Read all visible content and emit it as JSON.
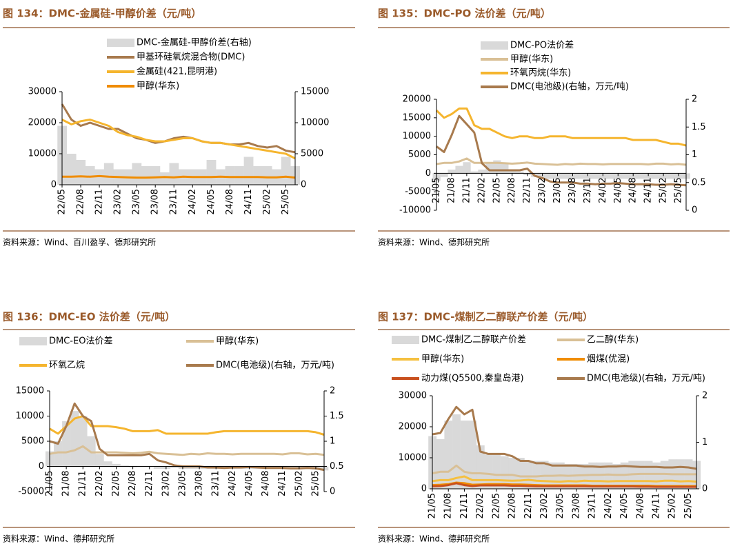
{
  "chart_data": [
    {
      "type": "line",
      "title": "图 134：DMC-金属硅-甲醇价差（元/吨）",
      "source": "资料来源：Wind、百川盈孚、德邦研究所",
      "categories": [
        "22/05",
        null,
        "22/08",
        null,
        "22/11",
        null,
        "23/02",
        null,
        "23/05",
        null,
        "23/08",
        null,
        "23/11",
        null,
        "24/02",
        null,
        "24/05",
        null,
        "24/08",
        null,
        "24/11",
        null,
        "25/02",
        null,
        "25/05",
        null
      ],
      "ylim": [
        0,
        30000
      ],
      "yticks": [
        0,
        10000,
        20000,
        30000
      ],
      "y2lim": [
        0,
        15000
      ],
      "y2ticks": [
        0,
        5000,
        10000,
        15000
      ],
      "series": [
        {
          "name": "DMC-金属硅-甲醇价差(右轴)",
          "type": "area",
          "axis": "y2",
          "color": "#d9d9d9",
          "values": [
            9500,
            5000,
            4000,
            3000,
            2500,
            3500,
            2500,
            2500,
            3500,
            3000,
            3000,
            2000,
            3500,
            2500,
            2500,
            2500,
            4000,
            2500,
            3000,
            3000,
            4500,
            3000,
            3000,
            2500,
            4500,
            3000
          ]
        },
        {
          "name": "甲基环硅氧烷混合物(DMC)",
          "type": "line",
          "color": "#a87a4d",
          "values": [
            26000,
            21000,
            19000,
            20000,
            19000,
            18000,
            18000,
            16500,
            15000,
            14500,
            13500,
            14000,
            15000,
            15500,
            15000,
            14000,
            13500,
            13500,
            13000,
            13000,
            13500,
            12500,
            12000,
            12500,
            11000,
            10500
          ]
        },
        {
          "name": "金属硅(421,昆明港)",
          "type": "line",
          "color": "#f5b52e",
          "values": [
            21000,
            19500,
            20500,
            21000,
            20000,
            19000,
            17000,
            16000,
            15500,
            14500,
            14000,
            14000,
            14500,
            15000,
            15000,
            14000,
            13500,
            13500,
            13000,
            12500,
            12000,
            11500,
            11000,
            10500,
            10000,
            8500
          ]
        },
        {
          "name": "甲醇(华东)",
          "type": "line",
          "color": "#f08c00",
          "values": [
            2600,
            2600,
            2700,
            2600,
            2800,
            2600,
            2500,
            2400,
            2300,
            2300,
            2400,
            2500,
            2400,
            2600,
            2500,
            2500,
            2500,
            2600,
            2500,
            2500,
            2500,
            2500,
            2400,
            2400,
            2600,
            2300
          ]
        }
      ]
    },
    {
      "type": "line",
      "title": "图 135：DMC-PO 法价差（元/吨）",
      "source": "资料来源：Wind、德邦研究所",
      "categories": [
        "21/05",
        null,
        "21/08",
        null,
        "21/11",
        null,
        "22/02",
        null,
        "22/05",
        null,
        "22/08",
        null,
        "22/11",
        null,
        "23/02",
        null,
        "23/05",
        null,
        "23/08",
        null,
        "23/11",
        null,
        "24/02",
        null,
        "24/05",
        null,
        "24/08",
        null,
        "24/11",
        null,
        "25/02",
        null,
        "25/05",
        null
      ],
      "ylim": [
        -10000,
        20000
      ],
      "yticks": [
        -10000,
        -5000,
        0,
        5000,
        10000,
        15000,
        20000
      ],
      "y2lim": [
        0,
        2
      ],
      "y2ticks": [
        0,
        0.5,
        1,
        1.5,
        2
      ],
      "series": [
        {
          "name": "DMC-PO法价差",
          "type": "area",
          "color": "#d9d9d9",
          "values": [
            -2000,
            -1000,
            1000,
            2000,
            3000,
            500,
            1000,
            3000,
            3500,
            2500,
            1000,
            500,
            -500,
            -1000,
            -1500,
            -1500,
            -1500,
            -1500,
            -1500,
            -1500,
            -1500,
            -1500,
            -1500,
            -1500,
            -1500,
            -1500,
            -1500,
            -1500,
            -1500,
            -1500,
            -1500,
            -1500,
            -1500,
            -1500
          ]
        },
        {
          "name": "甲醇(华东)",
          "type": "line",
          "color": "#d9c096",
          "values": [
            2500,
            2800,
            2800,
            3200,
            4000,
            2800,
            2800,
            2800,
            2800,
            2700,
            2600,
            2700,
            2900,
            2600,
            2500,
            2400,
            2300,
            2500,
            2400,
            2600,
            2500,
            2500,
            2400,
            2500,
            2500,
            2500,
            2500,
            2500,
            2400,
            2600,
            2600,
            2400,
            2500,
            2300
          ]
        },
        {
          "name": "环氧丙烷(华东)",
          "type": "line",
          "color": "#f5b52e",
          "values": [
            17000,
            15000,
            16000,
            17500,
            17500,
            13000,
            12000,
            12000,
            11000,
            10000,
            9500,
            10000,
            10000,
            9500,
            9500,
            10000,
            10000,
            10000,
            9500,
            9500,
            9500,
            9500,
            9500,
            9500,
            9500,
            9500,
            9000,
            9000,
            9000,
            9000,
            8500,
            8000,
            8000,
            7500
          ]
        },
        {
          "name": "DMC(电池级)(右轴，万元/吨)",
          "type": "line",
          "axis": "y2",
          "color": "#a87a4d",
          "values": [
            1.15,
            1.05,
            1.35,
            1.7,
            1.55,
            1.4,
            0.85,
            0.72,
            0.72,
            0.72,
            0.72,
            0.72,
            0.75,
            0.62,
            0.58,
            0.52,
            0.5,
            0.5,
            0.5,
            0.48,
            0.48,
            0.47,
            0.48,
            0.48,
            0.49,
            0.48,
            0.47,
            0.47,
            0.47,
            0.46,
            0.46,
            0.47,
            0.46,
            0.45
          ]
        }
      ]
    },
    {
      "type": "line",
      "title": "图 136：DMC-EO 法价差（元/吨）",
      "source": "资料来源：Wind、德邦研究所",
      "categories": [
        "21/05",
        null,
        "21/08",
        null,
        "21/11",
        null,
        "22/02",
        null,
        "22/05",
        null,
        "22/08",
        null,
        "22/11",
        null,
        "23/02",
        null,
        "23/05",
        null,
        "23/08",
        null,
        "23/11",
        null,
        "24/02",
        null,
        "24/05",
        null,
        "24/08",
        null,
        "24/11",
        null,
        "25/02",
        null,
        "25/05",
        null
      ],
      "ylim": [
        -5000,
        15000
      ],
      "yticks": [
        -5000,
        0,
        5000,
        10000,
        15000
      ],
      "y2lim": [
        0,
        2
      ],
      "y2ticks": [
        0,
        0.5,
        1,
        1.5,
        2
      ],
      "series": [
        {
          "name": "DMC-EO法价差",
          "type": "area",
          "color": "#d9d9d9",
          "values": [
            3000,
            5000,
            9000,
            11000,
            10000,
            6000,
            2500,
            1000,
            500,
            200,
            -200,
            0,
            0,
            -500,
            -500,
            -300,
            -500,
            -500,
            -500,
            -500,
            -500,
            -500,
            -500,
            -500,
            -500,
            -500,
            -500,
            -500,
            -400,
            -500,
            -500,
            -500,
            -600,
            -800
          ]
        },
        {
          "name": "甲醇(华东)",
          "type": "line",
          "color": "#d9c096",
          "values": [
            2500,
            2800,
            2800,
            3200,
            4000,
            2800,
            2800,
            2800,
            2800,
            2700,
            2600,
            2700,
            2900,
            2600,
            2500,
            2400,
            2300,
            2500,
            2400,
            2600,
            2500,
            2500,
            2400,
            2500,
            2500,
            2500,
            2500,
            2500,
            2400,
            2600,
            2600,
            2400,
            2500,
            2300
          ]
        },
        {
          "name": "环氧乙烷",
          "type": "line",
          "color": "#f5b52e",
          "values": [
            7500,
            6500,
            8000,
            9500,
            10000,
            8000,
            8000,
            8000,
            7800,
            7500,
            7000,
            7000,
            7000,
            7200,
            6500,
            6500,
            6500,
            6500,
            6500,
            6500,
            6800,
            7000,
            7000,
            7000,
            7000,
            7000,
            7000,
            7000,
            7000,
            7000,
            7000,
            7000,
            6800,
            6300
          ]
        },
        {
          "name": "DMC(电池级)(右轴，万元/吨)",
          "type": "line",
          "axis": "y2",
          "color": "#a87a4d",
          "values": [
            1.0,
            0.95,
            1.3,
            1.75,
            1.5,
            1.4,
            0.85,
            0.72,
            0.72,
            0.72,
            0.72,
            0.72,
            0.75,
            0.62,
            0.58,
            0.52,
            0.5,
            0.5,
            0.5,
            0.48,
            0.48,
            0.47,
            0.48,
            0.48,
            0.49,
            0.48,
            0.47,
            0.47,
            0.47,
            0.46,
            0.46,
            0.47,
            0.46,
            0.43
          ]
        }
      ]
    },
    {
      "type": "line",
      "title": "图 137：DMC-煤制乙二醇联产价差（元/吨）",
      "source": "资料来源：Wind、德邦研究所",
      "categories": [
        "21/05",
        null,
        "21/08",
        null,
        "21/11",
        null,
        "22/02",
        null,
        "22/05",
        null,
        "22/08",
        null,
        "22/11",
        null,
        "23/02",
        null,
        "23/05",
        null,
        "23/08",
        null,
        "23/11",
        null,
        "24/02",
        null,
        "24/05",
        null,
        "24/08",
        null,
        "24/11",
        null,
        "25/02",
        null,
        "25/05",
        null
      ],
      "ylim": [
        0,
        30000
      ],
      "yticks": [
        0,
        10000,
        20000,
        30000
      ],
      "y2lim": [
        0,
        2
      ],
      "y2ticks": [
        0,
        1,
        2
      ],
      "series": [
        {
          "name": "DMC-煤制乙二醇联产价差",
          "type": "area",
          "color": "#d9d9d9",
          "values": [
            17000,
            16000,
            22000,
            24000,
            22000,
            22000,
            14000,
            11000,
            11000,
            10500,
            10000,
            10000,
            9000,
            9000,
            9000,
            8500,
            8500,
            8000,
            8000,
            8000,
            8500,
            8500,
            8500,
            8000,
            8500,
            9000,
            9000,
            9000,
            8500,
            9000,
            9500,
            9500,
            9500,
            9000
          ]
        },
        {
          "name": "乙二醇(华东)",
          "type": "line",
          "color": "#d9c096",
          "values": [
            5000,
            5500,
            5500,
            7500,
            5500,
            5000,
            5000,
            4800,
            4500,
            4500,
            4500,
            4000,
            4000,
            4000,
            4200,
            4200,
            4300,
            4200,
            4300,
            4400,
            4500,
            4500,
            4600,
            4500,
            4500,
            4700,
            4800,
            4800,
            4800,
            4800,
            4700,
            4700,
            4700,
            4700
          ]
        },
        {
          "name": "甲醇(华东)",
          "type": "line",
          "color": "#f5c040",
          "values": [
            2500,
            2800,
            2800,
            3500,
            4000,
            2800,
            2800,
            2800,
            2800,
            2700,
            2600,
            2700,
            2900,
            2600,
            2500,
            2400,
            2300,
            2500,
            2400,
            2600,
            2500,
            2500,
            2400,
            2500,
            2500,
            2500,
            2500,
            2500,
            2400,
            2600,
            2600,
            2400,
            2500,
            2300
          ]
        },
        {
          "name": "烟煤(优混)",
          "type": "line",
          "color": "#f08c00",
          "values": [
            1200,
            1300,
            1500,
            2000,
            1800,
            1300,
            1400,
            1500,
            1500,
            1500,
            1400,
            1400,
            1300,
            1200,
            1100,
            1100,
            1100,
            1100,
            1100,
            1100,
            1000,
            1000,
            1000,
            1000,
            1000,
            1000,
            1000,
            1000,
            900,
            900,
            900,
            900,
            900,
            900
          ]
        },
        {
          "name": "动力煤(Q5500,秦皇岛港)",
          "type": "line",
          "color": "#c8501e",
          "values": [
            800,
            900,
            1200,
            1800,
            1200,
            900,
            1100,
            1100,
            1100,
            1100,
            1000,
            1000,
            900,
            800,
            800,
            800,
            800,
            800,
            800,
            800,
            750,
            750,
            750,
            750,
            750,
            750,
            700,
            700,
            650,
            650,
            650,
            650,
            650,
            650
          ]
        },
        {
          "name": "DMC(电池级)(右轴，万元/吨)",
          "type": "line",
          "axis": "y2",
          "color": "#a87a4d",
          "values": [
            1.17,
            1.2,
            1.5,
            1.76,
            1.6,
            1.7,
            0.8,
            0.75,
            0.75,
            0.75,
            0.7,
            0.6,
            0.6,
            0.55,
            0.55,
            0.5,
            0.5,
            0.5,
            0.5,
            0.48,
            0.48,
            0.47,
            0.48,
            0.48,
            0.49,
            0.48,
            0.47,
            0.47,
            0.47,
            0.46,
            0.46,
            0.47,
            0.46,
            0.43
          ]
        }
      ]
    }
  ]
}
